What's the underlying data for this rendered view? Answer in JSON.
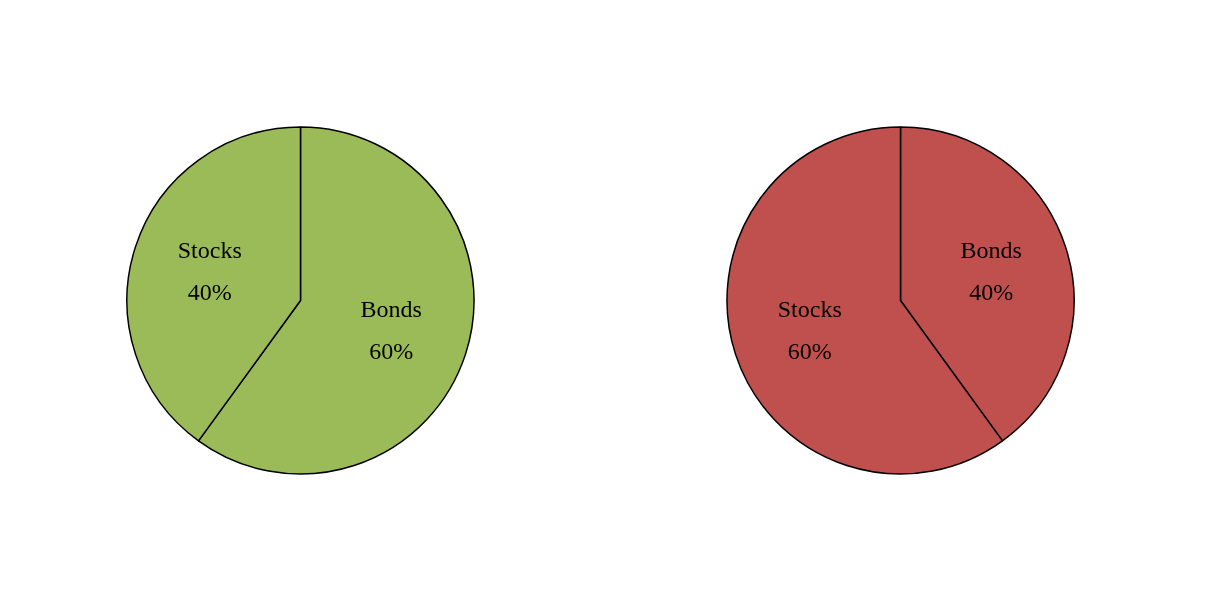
{
  "chart_data": [
    {
      "type": "pie",
      "categories": [
        "Bonds",
        "Stocks"
      ],
      "values": [
        60,
        40
      ],
      "colors": [
        "#9bbb59",
        "#9bbb59"
      ],
      "value_labels": [
        "60%",
        "40%"
      ]
    },
    {
      "type": "pie",
      "categories": [
        "Bonds",
        "Stocks"
      ],
      "values": [
        40,
        60
      ],
      "colors": [
        "#c0504d",
        "#c0504d"
      ],
      "value_labels": [
        "40%",
        "60%"
      ]
    }
  ]
}
